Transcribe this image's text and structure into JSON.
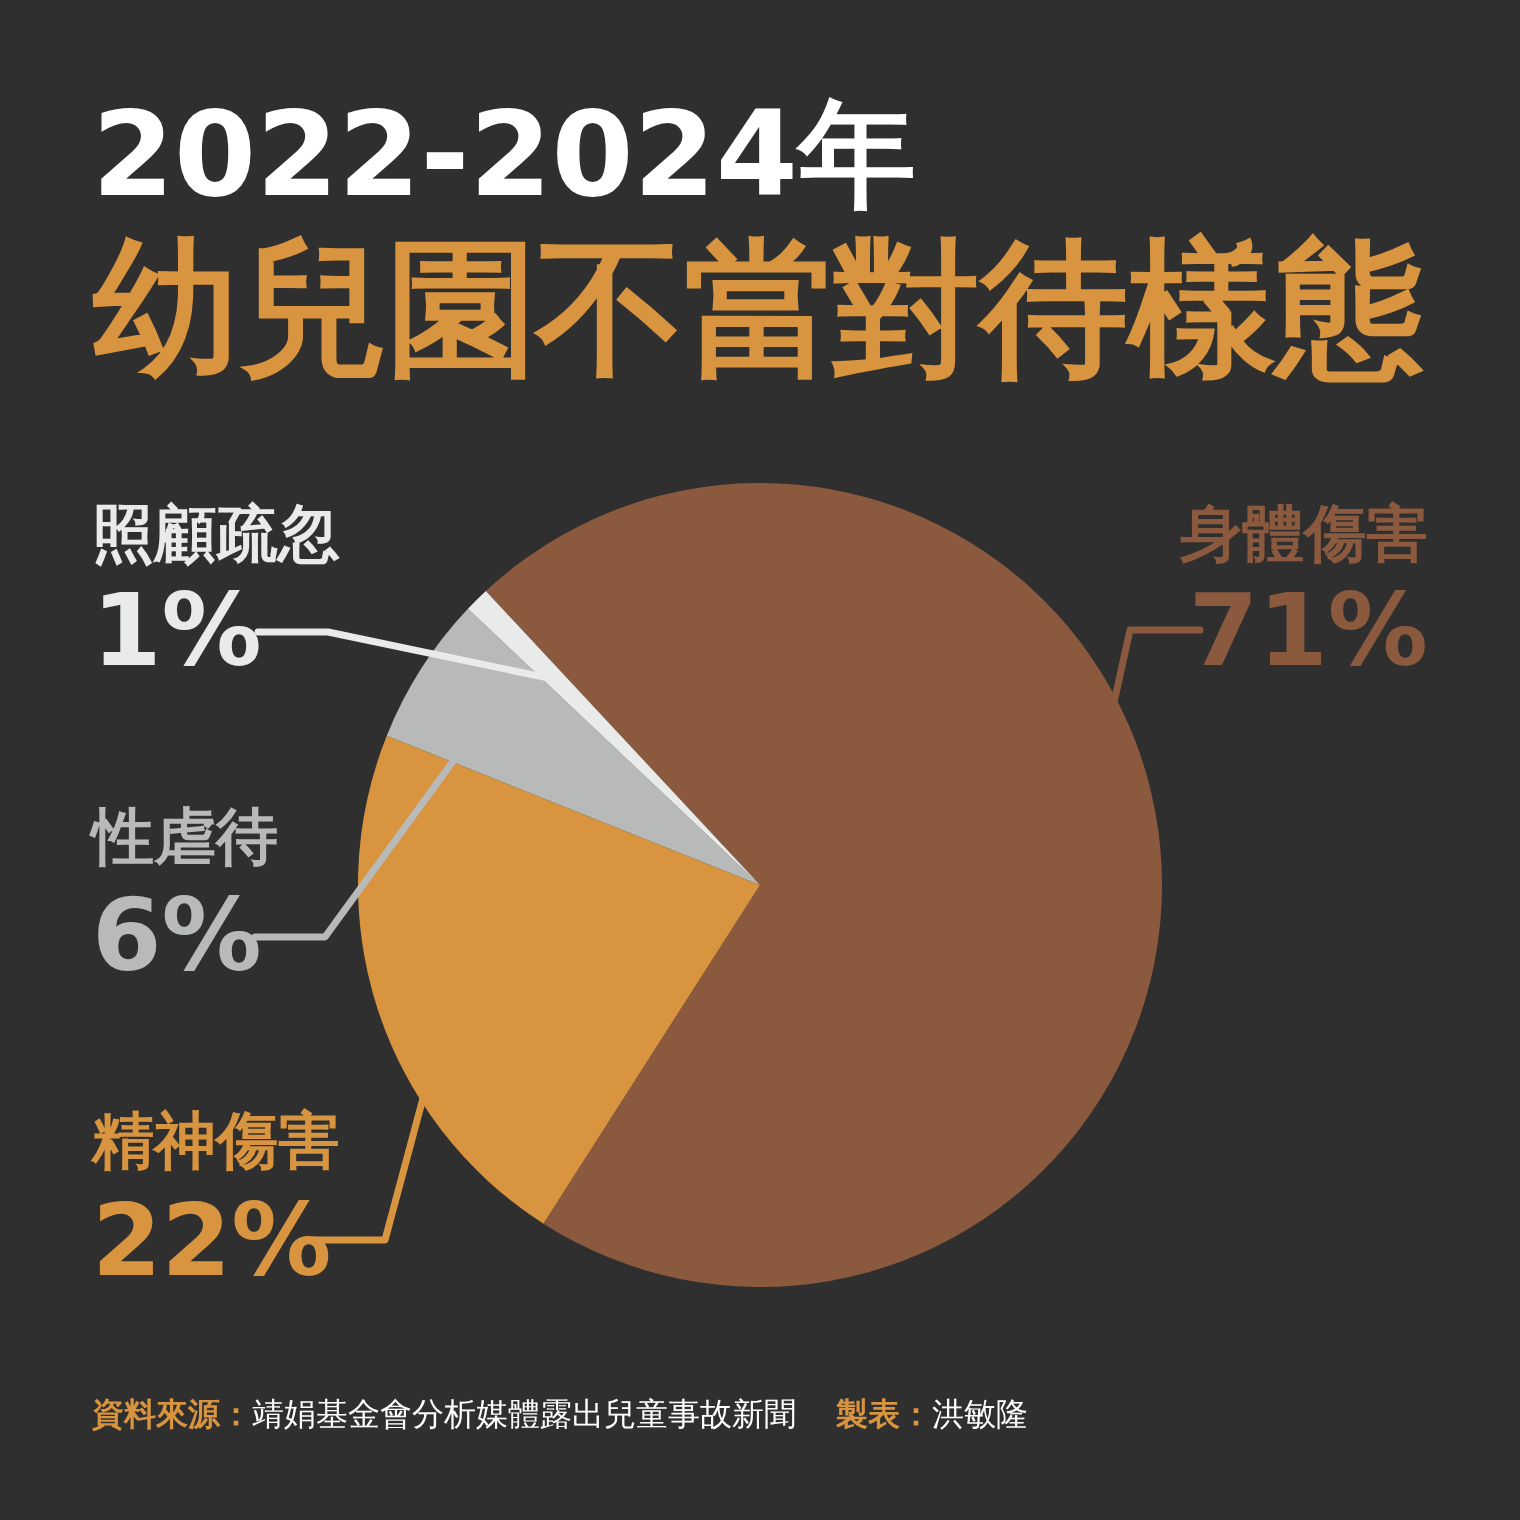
{
  "chart_data": {
    "type": "pie",
    "title": "2022-2024年",
    "subtitle": "幼兒園不當對待樣態",
    "categories": [
      "身體傷害",
      "精神傷害",
      "性虐待",
      "照顧疏忽"
    ],
    "values": [
      71,
      22,
      6,
      1
    ],
    "colors": [
      "#8b5a3e",
      "#d8943e",
      "#b8b9b9",
      "#e9ebea"
    ],
    "value_labels": [
      "71%",
      "22%",
      "6%",
      "1%"
    ],
    "annotations": [
      "資料來源：靖娟基金會分析媒體露出兒童事故新聞",
      "製表：洪敏隆"
    ]
  }
}
